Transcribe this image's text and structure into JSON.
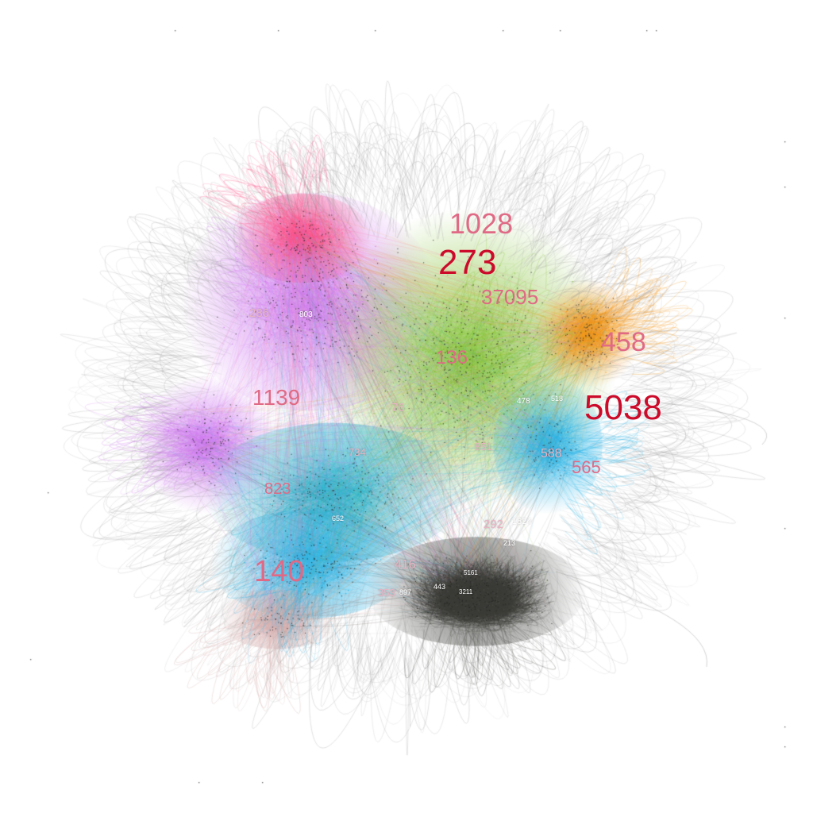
{
  "graph": {
    "background": "#ffffff",
    "communities": [
      {
        "name": "magenta",
        "color": "#ff4f86"
      },
      {
        "name": "violet",
        "color": "#cf78f0"
      },
      {
        "name": "green",
        "color": "#7cbf2a"
      },
      {
        "name": "orange",
        "color": "#f5930f"
      },
      {
        "name": "teal",
        "color": "#25b0c8"
      },
      {
        "name": "blue",
        "color": "#29b4e8"
      },
      {
        "name": "dark",
        "color": "#4a4a46"
      },
      {
        "name": "pink-grey",
        "color": "#d8b0b0"
      },
      {
        "name": "periphery",
        "color": "#b5b5b5"
      }
    ],
    "label_colors": {
      "major": "#cc0a2a",
      "medium": "#e06a86",
      "minor": "#e8b4c4",
      "tiny": "#ffffff"
    },
    "labels": [
      {
        "text": "1028",
        "tier": "medium"
      },
      {
        "text": "273",
        "tier": "major"
      },
      {
        "text": "37095",
        "tier": "medium"
      },
      {
        "text": "458",
        "tier": "medium"
      },
      {
        "text": "5038",
        "tier": "major"
      },
      {
        "text": "136",
        "tier": "medium"
      },
      {
        "text": "1139",
        "tier": "medium"
      },
      {
        "text": "76",
        "tier": "minor"
      },
      {
        "text": "286",
        "tier": "minor"
      },
      {
        "text": "803",
        "tier": "tiny"
      },
      {
        "text": "734",
        "tier": "minor"
      },
      {
        "text": "851",
        "tier": "minor"
      },
      {
        "text": "588",
        "tier": "minor"
      },
      {
        "text": "565",
        "tier": "medium"
      },
      {
        "text": "823",
        "tier": "medium"
      },
      {
        "text": "478",
        "tier": "tiny"
      },
      {
        "text": "518",
        "tier": "tiny"
      },
      {
        "text": "652",
        "tier": "tiny"
      },
      {
        "text": "292",
        "tier": "minor"
      },
      {
        "text": "1824",
        "tier": "tiny"
      },
      {
        "text": "213",
        "tier": "tiny"
      },
      {
        "text": "140",
        "tier": "medium"
      },
      {
        "text": "416",
        "tier": "minor"
      },
      {
        "text": "353",
        "tier": "minor"
      },
      {
        "text": "897",
        "tier": "tiny"
      },
      {
        "text": "443",
        "tier": "tiny"
      },
      {
        "text": "3211",
        "tier": "tiny"
      },
      {
        "text": "5161",
        "tier": "tiny"
      }
    ]
  }
}
